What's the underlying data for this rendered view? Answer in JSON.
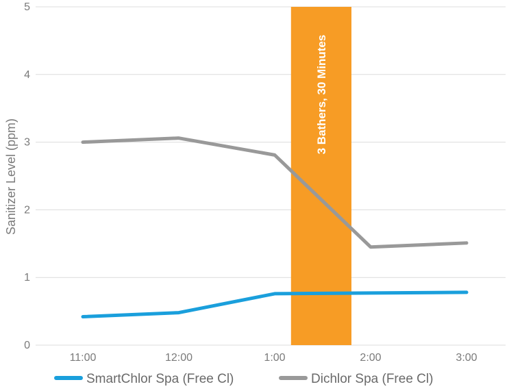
{
  "chart_data": {
    "type": "line",
    "title": "",
    "xlabel": "",
    "ylabel": "Sanitizer Level (ppm)",
    "categories": [
      "11:00",
      "12:00",
      "1:00",
      "2:00",
      "3:00"
    ],
    "yticks": [
      "0",
      "1",
      "2",
      "3",
      "4",
      "5"
    ],
    "ylim": [
      0,
      5
    ],
    "grid": "horizontal",
    "legend_position": "bottom",
    "series": [
      {
        "name": "SmartChlor Spa (Free Cl)",
        "color": "#1a9fdc",
        "values": [
          0.42,
          0.48,
          0.76,
          0.77,
          0.78
        ]
      },
      {
        "name": "Dichlor Spa (Free Cl)",
        "color": "#999999",
        "values": [
          3.0,
          3.06,
          2.81,
          1.45,
          1.51
        ]
      }
    ],
    "annotation": {
      "text": "3 Bathers, 30 Minutes",
      "color": "#f79c25",
      "x_start": 2.17,
      "x_end": 2.8
    }
  }
}
